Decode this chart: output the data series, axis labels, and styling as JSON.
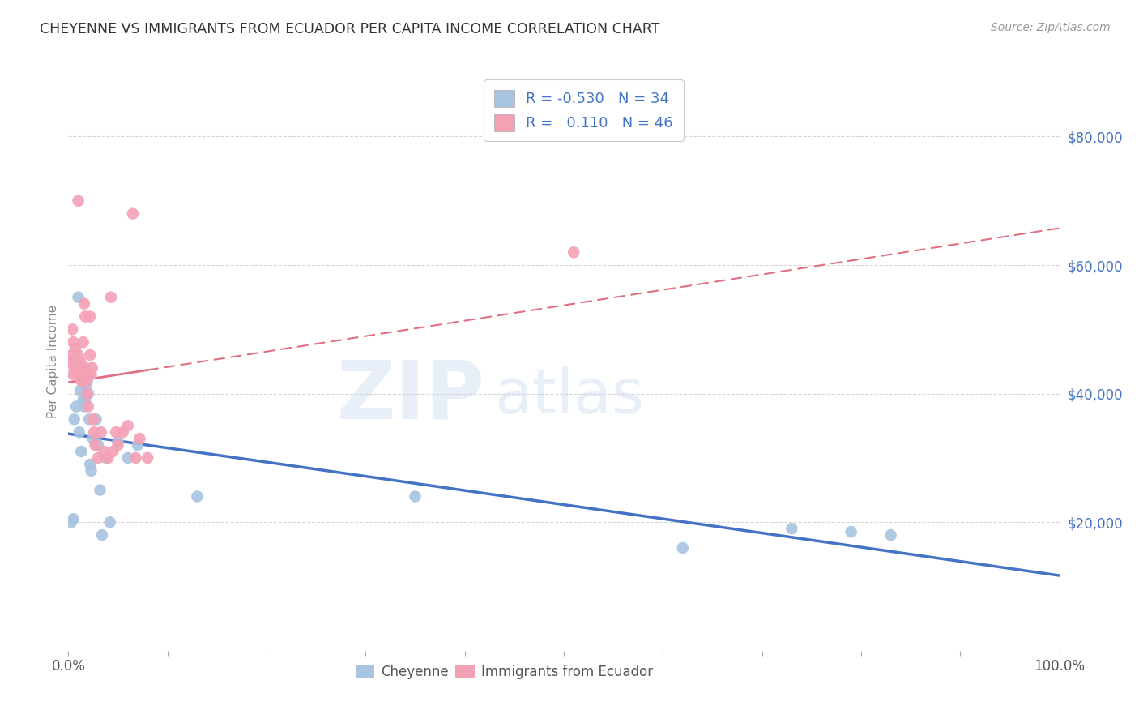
{
  "title": "CHEYENNE VS IMMIGRANTS FROM ECUADOR PER CAPITA INCOME CORRELATION CHART",
  "source": "Source: ZipAtlas.com",
  "ylabel": "Per Capita Income",
  "xlim": [
    0,
    1.0
  ],
  "ylim": [
    0,
    90000
  ],
  "yticks": [
    0,
    20000,
    40000,
    60000,
    80000
  ],
  "ytick_labels": [
    "",
    "$20,000",
    "$40,000",
    "$60,000",
    "$80,000"
  ],
  "cheyenne_color": "#a8c4e0",
  "ecuador_color": "#f4a0b5",
  "cheyenne_line_color": "#4472c4",
  "ecuador_line_color": "#e07080",
  "cheyenne_R": "-0.530",
  "cheyenne_N": "34",
  "ecuador_R": "0.110",
  "ecuador_N": "46",
  "background_color": "#ffffff",
  "grid_color": "#cccccc",
  "title_color": "#333333",
  "axis_label_color": "#4472c4",
  "watermark_color": "#c8d8f0",
  "watermark": "ZIPatlas",
  "cheyenne_x": [
    0.003,
    0.005,
    0.006,
    0.008,
    0.01,
    0.011,
    0.012,
    0.013,
    0.014,
    0.015,
    0.016,
    0.017,
    0.018,
    0.019,
    0.02,
    0.021,
    0.022,
    0.023,
    0.025,
    0.028,
    0.03,
    0.032,
    0.034,
    0.038,
    0.042,
    0.05,
    0.06,
    0.07,
    0.13,
    0.35,
    0.62,
    0.73,
    0.79,
    0.83
  ],
  "cheyenne_y": [
    20000,
    20500,
    36000,
    38000,
    55000,
    34000,
    40500,
    31000,
    42000,
    39000,
    38000,
    39000,
    41000,
    42000,
    40000,
    36000,
    29000,
    28000,
    33000,
    36000,
    32000,
    25000,
    18000,
    30000,
    20000,
    32500,
    30000,
    32000,
    24000,
    24000,
    16000,
    19000,
    18500,
    18000
  ],
  "ecuador_x": [
    0.002,
    0.003,
    0.004,
    0.005,
    0.005,
    0.006,
    0.007,
    0.008,
    0.009,
    0.01,
    0.01,
    0.011,
    0.012,
    0.013,
    0.013,
    0.014,
    0.015,
    0.016,
    0.017,
    0.018,
    0.018,
    0.019,
    0.02,
    0.021,
    0.022,
    0.022,
    0.023,
    0.024,
    0.025,
    0.026,
    0.027,
    0.03,
    0.033,
    0.036,
    0.04,
    0.043,
    0.045,
    0.048,
    0.05,
    0.055,
    0.06,
    0.065,
    0.068,
    0.072,
    0.51,
    0.08
  ],
  "ecuador_y": [
    45000,
    46000,
    50000,
    48000,
    43000,
    44000,
    47000,
    45000,
    44000,
    46000,
    70000,
    43000,
    45000,
    44000,
    42000,
    42000,
    48000,
    54000,
    52000,
    44000,
    42000,
    40000,
    38000,
    43000,
    46000,
    52000,
    43000,
    44000,
    36000,
    34000,
    32000,
    30000,
    34000,
    31000,
    30000,
    55000,
    31000,
    34000,
    32000,
    34000,
    35000,
    68000,
    30000,
    33000,
    62000,
    30000
  ]
}
